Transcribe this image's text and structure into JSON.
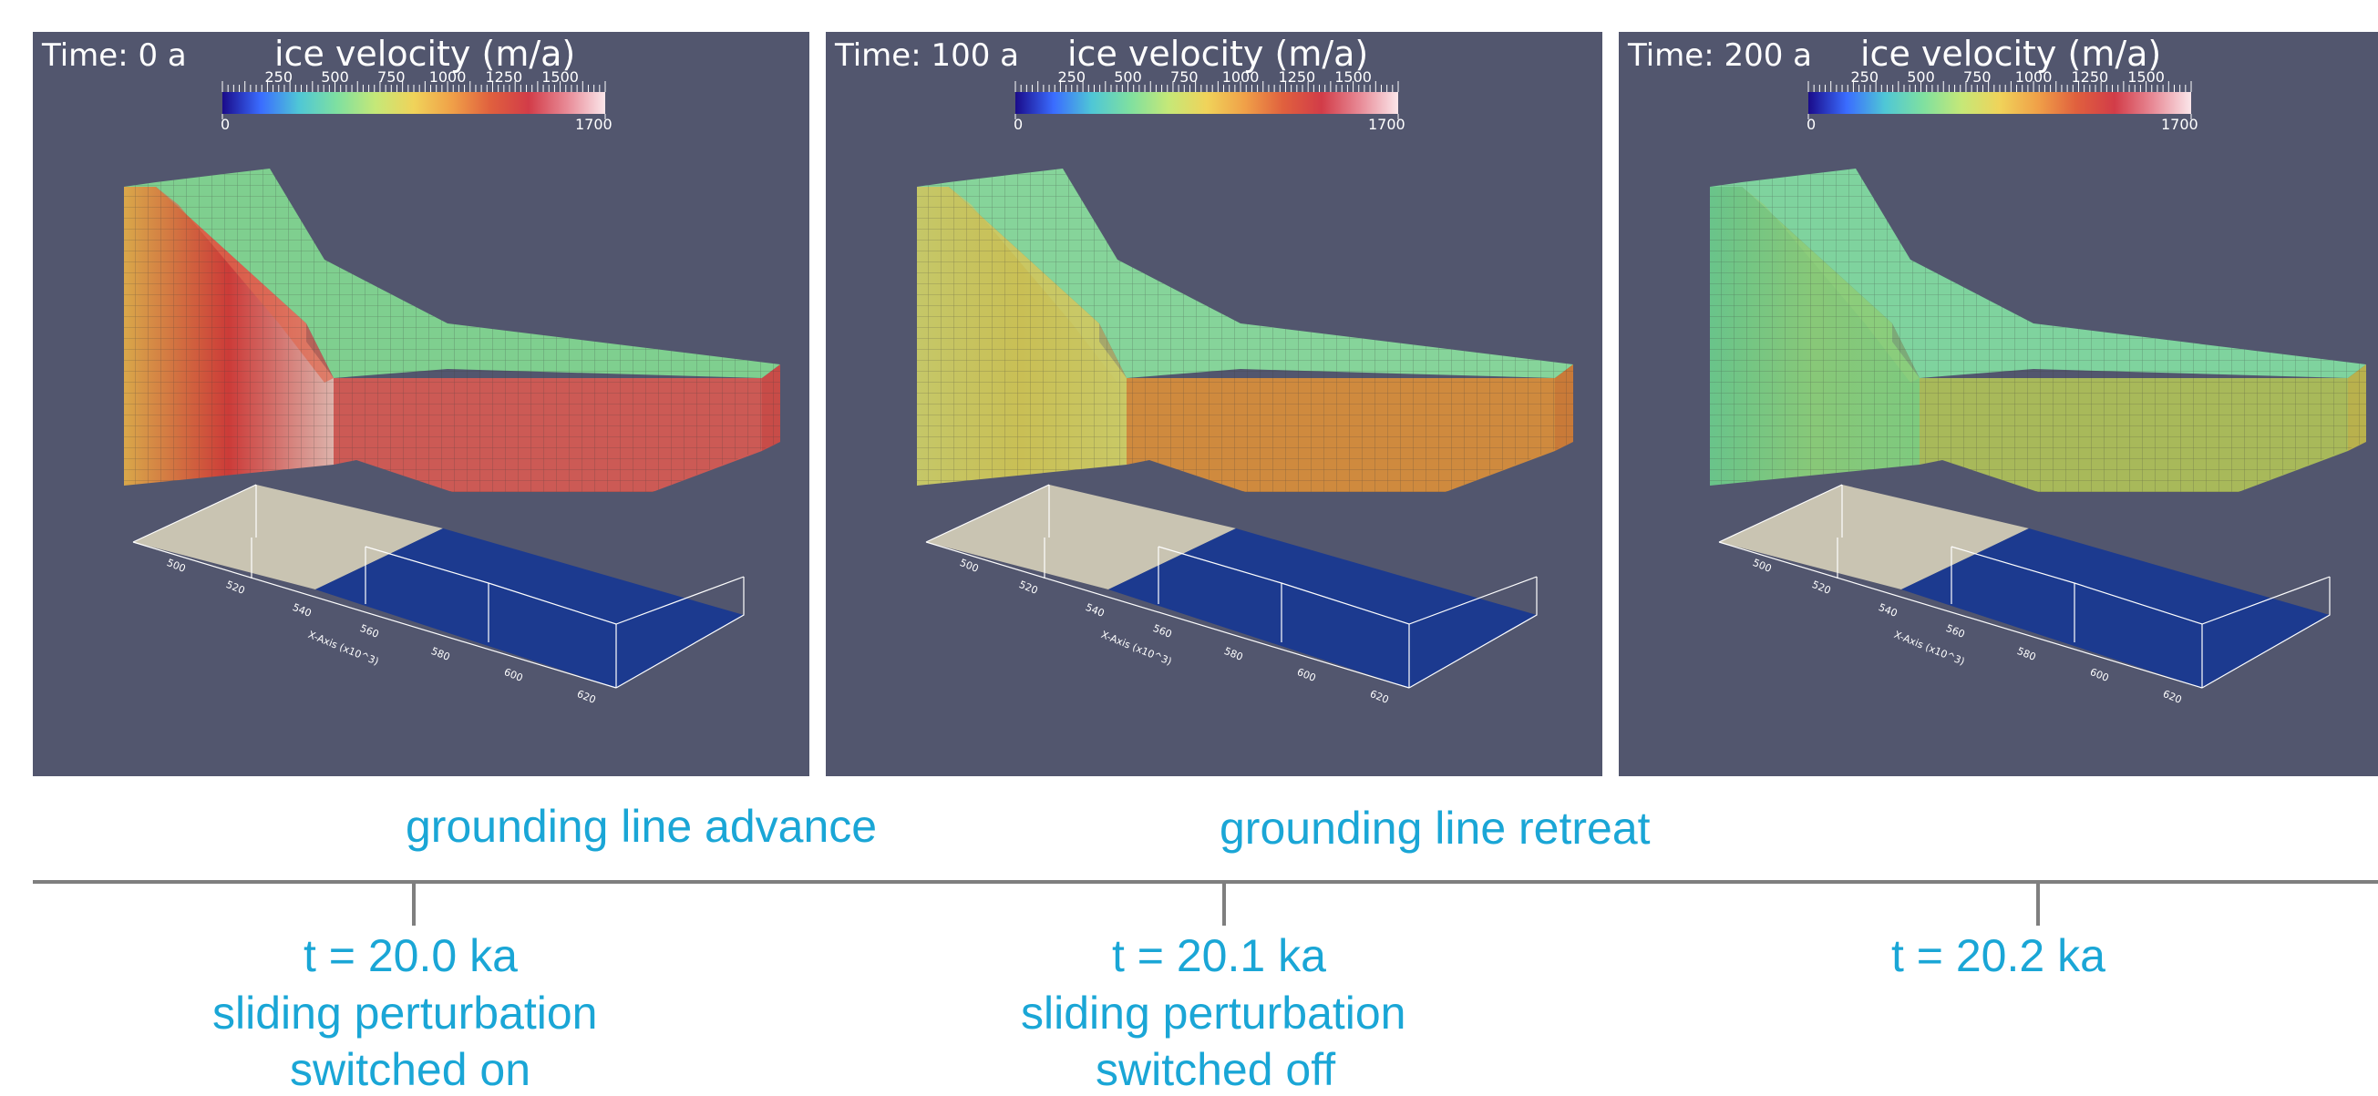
{
  "colorbar": {
    "title": "ice velocity (m/a)",
    "ticks": [
      "250",
      "500",
      "750",
      "1000",
      "1250",
      "1500"
    ],
    "min_label": "0",
    "max_label": "1700"
  },
  "panels": [
    {
      "time": "Time: 0 a",
      "colors": {
        "face": "#e0cdc4",
        "left": "#d9a84a",
        "top": "#7fcf8f",
        "top_edge": "#e06a50",
        "right": "#c84c48",
        "front": "#cc5a55",
        "band": "#cc3b38"
      }
    },
    {
      "time": "Time: 100 a",
      "colors": {
        "face": "#c9cb6a",
        "left": "#c5c768",
        "top": "#86d49a",
        "top_edge": "#c9cb6a",
        "right": "#c97a38",
        "front": "#cf8a3e",
        "band": "#c9bf55"
      }
    },
    {
      "time": "Time: 200 a",
      "colors": {
        "face": "#7cca80",
        "left": "#69c48a",
        "top": "#7fd39e",
        "top_edge": "#8fce7c",
        "right": "#b9b14d",
        "front": "#a8b95a",
        "band": "#88c878"
      }
    }
  ],
  "axis": {
    "tick_labels": [
      "500",
      "520",
      "540",
      "560",
      "580",
      "600",
      "620"
    ],
    "name": "X-Axis (x10^3)"
  },
  "captions": {
    "advance": "grounding line advance",
    "retreat": "grounding line retreat"
  },
  "timeline": {
    "events": [
      {
        "lines": [
          "t = 20.0 ka",
          "sliding perturbation",
          "switched on"
        ]
      },
      {
        "lines": [
          "t = 20.1 ka",
          "sliding perturbation",
          "switched off"
        ]
      },
      {
        "lines": [
          "t = 20.2 ka"
        ]
      }
    ]
  }
}
